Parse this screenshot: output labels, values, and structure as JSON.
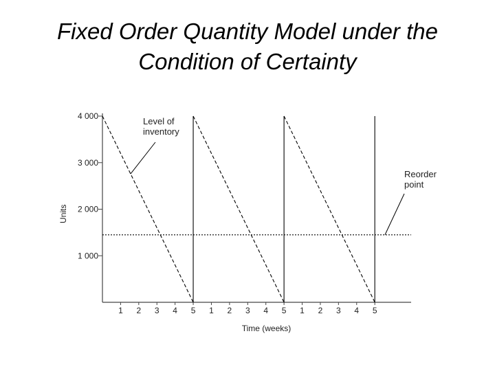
{
  "title": {
    "line1": "Fixed Order Quantity Model under the",
    "line2": "Condition of Certainty"
  },
  "chart_data": {
    "type": "line",
    "xlabel": "Time (weeks)",
    "ylabel": "Units",
    "x_tick_labels": [
      "1",
      "2",
      "3",
      "4",
      "5",
      "1",
      "2",
      "3",
      "4",
      "5",
      "1",
      "2",
      "3",
      "4",
      "5"
    ],
    "y_ticks": [
      1000,
      2000,
      3000,
      4000
    ],
    "y_tick_labels": [
      "1 000",
      "2 000",
      "3 000",
      "4 000"
    ],
    "ylim": [
      0,
      4000
    ],
    "xlim": [
      0,
      17
    ],
    "series": [
      {
        "name": "Level of inventory",
        "style": "dashed",
        "x": [
          0,
          5,
          5,
          10,
          10,
          15,
          15
        ],
        "y": [
          4000,
          0,
          4000,
          0,
          4000,
          0,
          4000
        ]
      }
    ],
    "reorder_point": 1450,
    "annotations": [
      {
        "text_lines": [
          "Level of",
          "inventory"
        ]
      },
      {
        "text_lines": [
          "Reorder",
          "point"
        ]
      }
    ],
    "grid": false,
    "colors": {
      "line": "#000000",
      "axis": "#444444",
      "text": "#222222"
    }
  }
}
